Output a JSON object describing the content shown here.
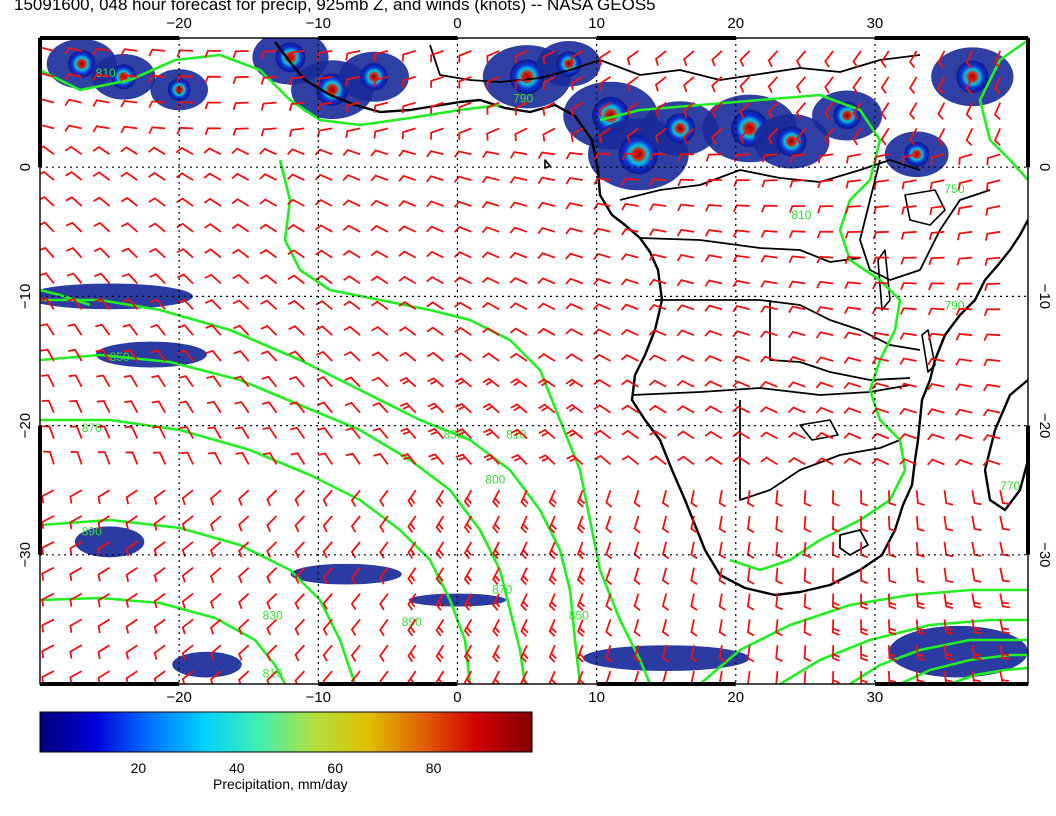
{
  "title": "15091600, 048 hour forecast for precip, 925mb Z, and winds (knots) -- NASA GEOS5",
  "map": {
    "lon_range": [
      -30,
      41
    ],
    "lat_range": [
      -40,
      10
    ],
    "lon_ticks": [
      -20,
      -10,
      0,
      10,
      20,
      30
    ],
    "lat_ticks": [
      0,
      -10,
      -20,
      -30
    ],
    "lon_tick_labels": [
      "−20",
      "−10",
      "0",
      "10",
      "20",
      "30"
    ],
    "lat_tick_labels": [
      "0",
      "−10",
      "−20",
      "−30"
    ],
    "colors": {
      "coast": "#000000",
      "contour": "#22ee22",
      "wind": "#ee1111",
      "grid": "#000000"
    },
    "contour_labels": [
      "810",
      "790",
      "850",
      "870",
      "830",
      "810",
      "800",
      "890",
      "870",
      "850",
      "830",
      "810",
      "890",
      "810",
      "790",
      "770",
      "750"
    ],
    "precip_cells": [
      {
        "lon": -27,
        "lat": 8,
        "intensity": 0.5
      },
      {
        "lon": -24,
        "lat": 7,
        "intensity": 0.4
      },
      {
        "lon": -20,
        "lat": 6,
        "intensity": 0.3
      },
      {
        "lon": -12,
        "lat": 8.5,
        "intensity": 0.6
      },
      {
        "lon": -9,
        "lat": 6,
        "intensity": 0.7
      },
      {
        "lon": -6,
        "lat": 7,
        "intensity": 0.5
      },
      {
        "lon": 5,
        "lat": 7,
        "intensity": 0.8
      },
      {
        "lon": 8,
        "lat": 8,
        "intensity": 0.4
      },
      {
        "lon": 11,
        "lat": 4,
        "intensity": 0.9
      },
      {
        "lon": 13,
        "lat": 1,
        "intensity": 1.0
      },
      {
        "lon": 16,
        "lat": 3,
        "intensity": 0.6
      },
      {
        "lon": 21,
        "lat": 3,
        "intensity": 0.9
      },
      {
        "lon": 24,
        "lat": 2,
        "intensity": 0.6
      },
      {
        "lon": 28,
        "lat": 4,
        "intensity": 0.5
      },
      {
        "lon": 33,
        "lat": 1,
        "intensity": 0.4
      },
      {
        "lon": 37,
        "lat": 7,
        "intensity": 0.7
      }
    ],
    "precip_bands": [
      {
        "lon": -25,
        "lat": -10,
        "rx": 6,
        "ry": 1
      },
      {
        "lon": -22,
        "lat": -14.5,
        "rx": 4,
        "ry": 1
      },
      {
        "lon": -25,
        "lat": -29,
        "rx": 2.5,
        "ry": 1.2
      },
      {
        "lon": -8,
        "lat": -31.5,
        "rx": 4,
        "ry": 0.8
      },
      {
        "lon": 0,
        "lat": -33.5,
        "rx": 3.5,
        "ry": 0.5
      },
      {
        "lon": 15,
        "lat": -38,
        "rx": 6,
        "ry": 1
      },
      {
        "lon": -18,
        "lat": -38.5,
        "rx": 2.5,
        "ry": 1
      },
      {
        "lon": 36,
        "lat": -37.5,
        "rx": 5,
        "ry": 2
      }
    ]
  },
  "colorbar": {
    "min": 0,
    "max": 100,
    "tick_values": [
      20,
      40,
      60,
      80
    ],
    "tick_labels": [
      "20",
      "40",
      "60",
      "80"
    ],
    "label": "Precipitation, mm/day",
    "stops": [
      "#00007a",
      "#0000d8",
      "#0070ff",
      "#00d0ff",
      "#40f0b0",
      "#b0e040",
      "#e0c000",
      "#e06000",
      "#d00000",
      "#800000"
    ]
  }
}
